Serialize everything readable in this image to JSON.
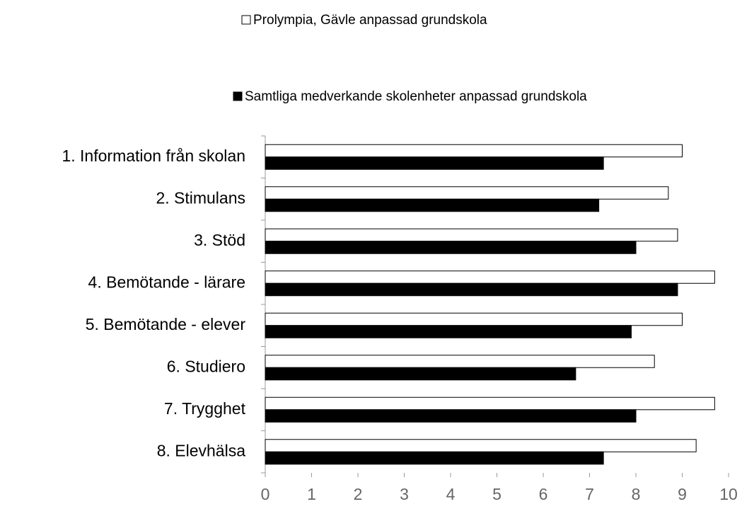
{
  "chart_data": {
    "type": "barh",
    "categories": [
      "1. Information från skolan",
      "2. Stimulans",
      "3. Stöd",
      "4. Bemötande - lärare",
      "5. Bemötande - elever",
      "6. Studiero",
      "7. Trygghet",
      "8. Elevhälsa"
    ],
    "series": [
      {
        "name": "Prolympia, Gävle anpassad grundskola",
        "color": "#ffffff",
        "values": [
          9.0,
          8.7,
          8.9,
          9.7,
          9.0,
          8.4,
          9.7,
          9.3
        ]
      },
      {
        "name": "Samtliga medverkande skolenheter anpassad grundskola",
        "color": "#000000",
        "values": [
          7.3,
          7.2,
          8.0,
          8.9,
          7.9,
          6.7,
          8.0,
          7.3
        ]
      }
    ],
    "xlim": [
      0,
      10
    ],
    "xticks": [
      0,
      1,
      2,
      3,
      4,
      5,
      6,
      7,
      8,
      9,
      10
    ],
    "grid": false,
    "legend": "top"
  }
}
